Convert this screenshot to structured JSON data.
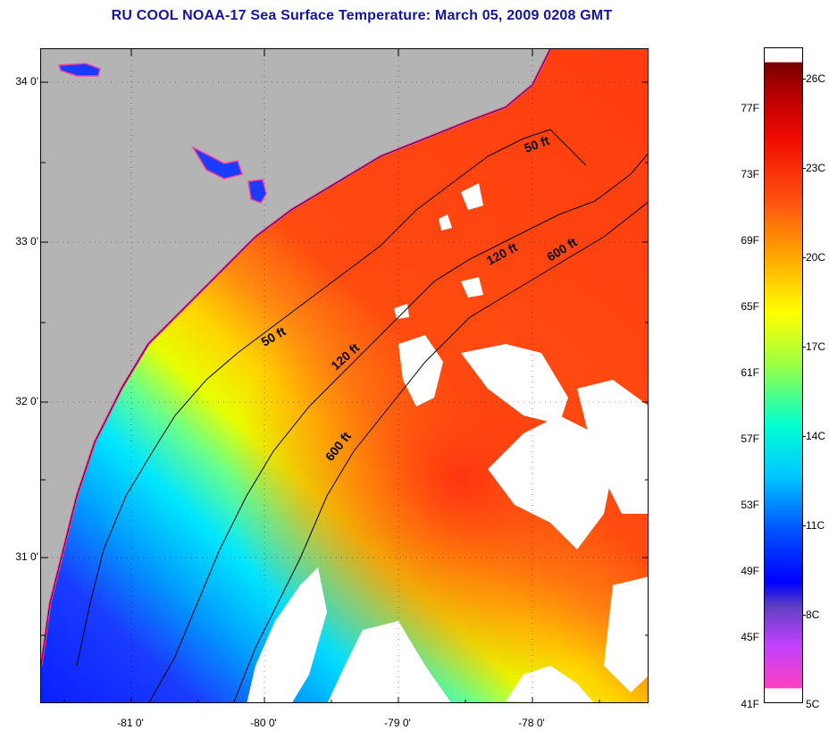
{
  "title": "RU COOL  NOAA-17  Sea Surface Temperature:  March 05, 2009 0208 GMT",
  "map": {
    "lat_labels": [
      "34 0'",
      "33 0'",
      "32 0'",
      "31 0'"
    ],
    "lon_labels": [
      "-81 0'",
      "-80 0'",
      "-79 0'",
      "-78 0'"
    ],
    "contour_labels": [
      "50 ft",
      "120 ft",
      "600 ft",
      "50 ft",
      "120 ft",
      "600 ft"
    ],
    "colors": {
      "land": "#b4b4b4",
      "cloud": "#ffffff",
      "deep_blue": "#1a32ff",
      "cyan": "#00e6ff",
      "yellow": "#ffff00",
      "orange_red": "#ff4a10"
    }
  },
  "colorbar": {
    "celsius_labels": [
      "26C",
      "23C",
      "20C",
      "17C",
      "14C",
      "11C",
      "8C",
      "5C"
    ],
    "fahrenheit_labels": [
      "77F",
      "73F",
      "69F",
      "65F",
      "61F",
      "57F",
      "53F",
      "49F",
      "45F",
      "41F"
    ]
  }
}
